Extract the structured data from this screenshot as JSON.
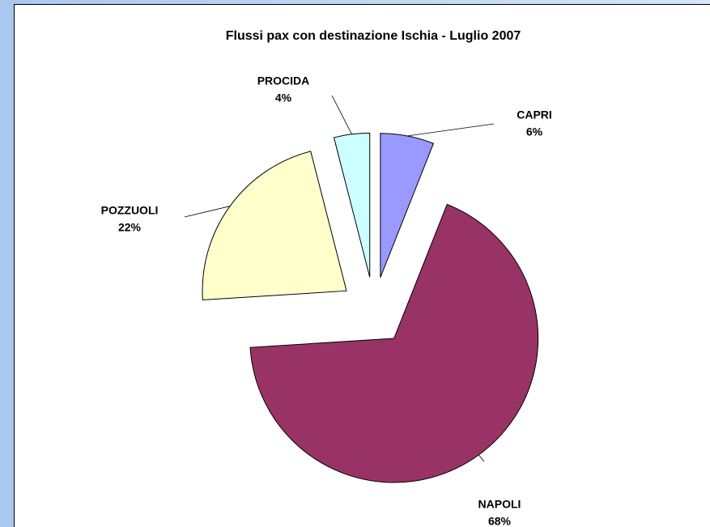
{
  "chart_data": {
    "type": "pie",
    "title": "Flussi pax con destinazione Ischia - Luglio 2007",
    "categories": [
      "CAPRI",
      "NAPOLI",
      "POZZUOLI",
      "PROCIDA"
    ],
    "values": [
      6,
      68,
      22,
      4
    ],
    "value_labels": [
      "6%",
      "68%",
      "22%",
      "4%"
    ],
    "colors": [
      "#9999ff",
      "#993366",
      "#ffffcc",
      "#ccffff"
    ]
  }
}
